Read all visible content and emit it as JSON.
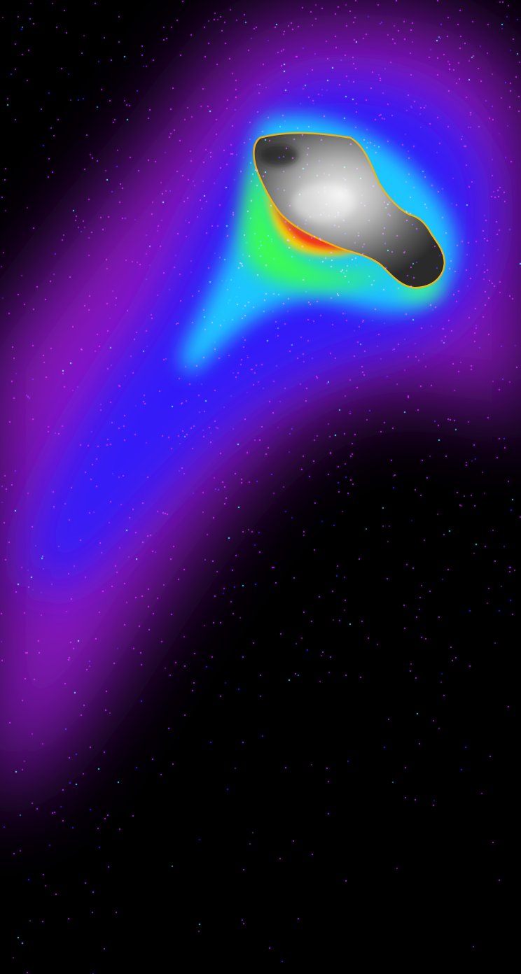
{
  "image": {
    "palette": {
      "background": "#000000",
      "outer_halo": "#b21cf0",
      "mid_halo": "#2a1cff",
      "inner_halo": "#1fd8ff",
      "green_zone": "#3cff48",
      "yellow_zone": "#ffd400",
      "red_rim": "#ff1a0a",
      "nucleus_light": "#d8d8d8",
      "nucleus_dark": "#3a3a3a"
    },
    "icons": [
      "comet-nucleus",
      "dust-coma",
      "dust-tail",
      "star-noise"
    ]
  }
}
